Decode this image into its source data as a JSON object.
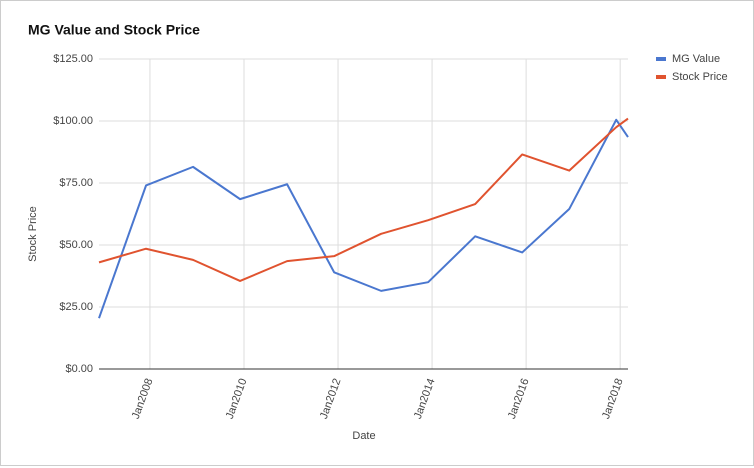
{
  "chart_data": {
    "type": "line",
    "title": "MG Value and Stock Price",
    "x_label": "Date",
    "y_label": "Stock Price",
    "x": [
      "2006-12",
      "2007-12",
      "2008-12",
      "2009-12",
      "2010-12",
      "2011-12",
      "2012-12",
      "2013-12",
      "2014-12",
      "2015-12",
      "2016-12",
      "2017-12",
      "2018-03"
    ],
    "series": [
      {
        "name": "MG Value",
        "color": "#4a77cf",
        "values": [
          20.5,
          74,
          81.5,
          68.5,
          74.5,
          39,
          31.5,
          35,
          53.5,
          47,
          64.5,
          100.5,
          93.5
        ]
      },
      {
        "name": "Stock Price",
        "color": "#e0532f",
        "values": [
          43,
          48.5,
          44,
          35.5,
          43.5,
          45.5,
          54.5,
          60,
          66.5,
          86.5,
          80,
          97.5,
          101
        ]
      }
    ],
    "xlim": [
      "2006-12",
      "2018-03"
    ],
    "xticks": [
      {
        "value": "2008-01",
        "label": "Jan2008"
      },
      {
        "value": "2010-01",
        "label": "Jan2010"
      },
      {
        "value": "2012-01",
        "label": "Jan2012"
      },
      {
        "value": "2014-01",
        "label": "Jan2014"
      },
      {
        "value": "2016-01",
        "label": "Jan2016"
      },
      {
        "value": "2018-01",
        "label": "Jan2018"
      }
    ],
    "ylim": [
      0,
      125
    ],
    "yticks": [
      {
        "value": 0,
        "label": "$0.00"
      },
      {
        "value": 25,
        "label": "$25.00"
      },
      {
        "value": 50,
        "label": "$50.00"
      },
      {
        "value": 75,
        "label": "$75.00"
      },
      {
        "value": 100,
        "label": "$100.00"
      },
      {
        "value": 125,
        "label": "$125.00"
      }
    ],
    "grid": true,
    "legend": "top-right"
  }
}
